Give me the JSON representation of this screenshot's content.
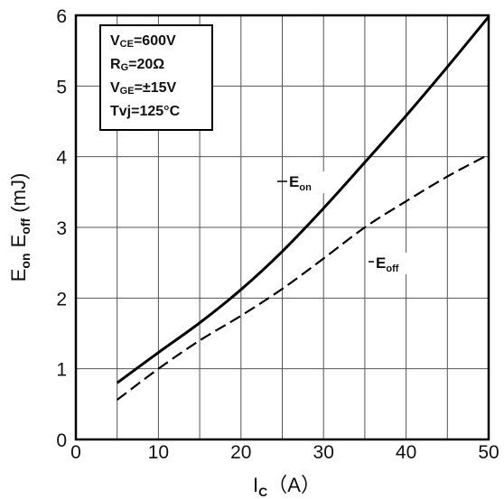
{
  "chart_data": {
    "type": "line",
    "xlabel": {
      "main": "I",
      "sub": "C",
      "unit": "（A）"
    },
    "ylabel": {
      "p1": "E",
      "s1": "on",
      "p2": " E",
      "s2": "off",
      "unit": " (mJ)"
    },
    "xlim": [
      0,
      50
    ],
    "ylim": [
      0,
      6
    ],
    "xticks": [
      0,
      10,
      20,
      30,
      40,
      50
    ],
    "yticks": [
      0,
      1,
      2,
      3,
      4,
      5,
      6
    ],
    "grid": true,
    "conditions": [
      {
        "main": "V",
        "sub": "CE",
        "rest": "=600V"
      },
      {
        "main": "R",
        "sub": "G",
        "rest": "=20Ω"
      },
      {
        "main": "V",
        "sub": "GE",
        "rest": "=±15V"
      },
      {
        "main": "Tvj",
        "sub": "",
        "rest": "=125°C"
      }
    ],
    "series": [
      {
        "name": "E",
        "sub": "on",
        "style": "solid",
        "color": "#000000",
        "x": [
          5,
          10,
          15,
          20,
          25,
          30,
          35,
          40,
          45,
          50
        ],
        "y": [
          0.8,
          1.23,
          1.65,
          2.12,
          2.66,
          3.27,
          3.92,
          4.58,
          5.27,
          5.98
        ]
      },
      {
        "name": "E",
        "sub": "off",
        "style": "dashed",
        "color": "#000000",
        "x": [
          5,
          10,
          15,
          20,
          25,
          30,
          35,
          40,
          45,
          50
        ],
        "y": [
          0.56,
          1.0,
          1.4,
          1.75,
          2.13,
          2.56,
          3.0,
          3.37,
          3.72,
          4.03
        ]
      }
    ]
  }
}
